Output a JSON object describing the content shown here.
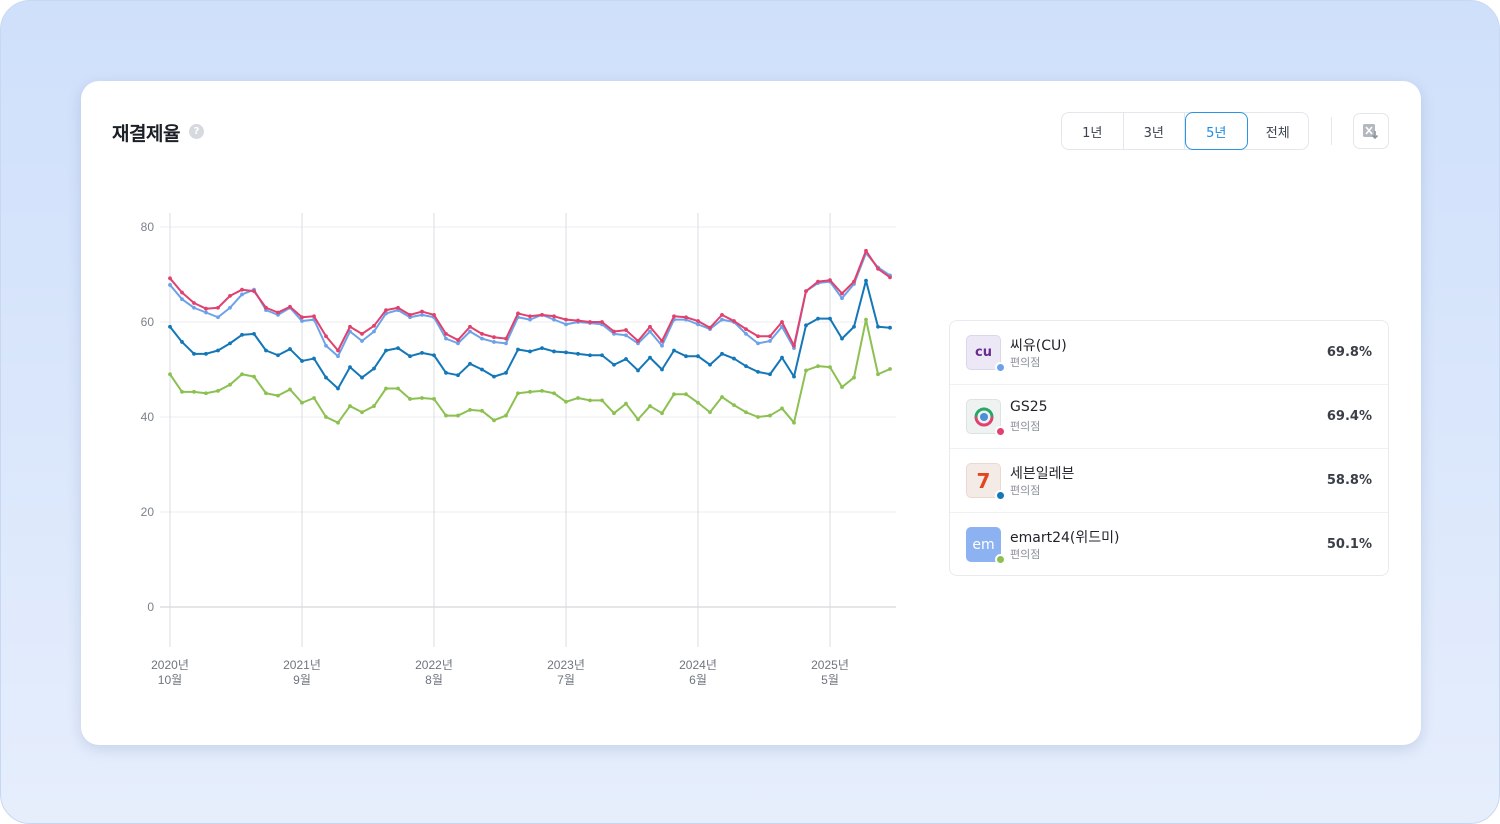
{
  "title": "재결제율",
  "help_icon": "?",
  "periods": [
    "1년",
    "3년",
    "5년",
    "전체"
  ],
  "active_period": "5년",
  "export_icon": "excel-download-icon",
  "legend": [
    {
      "name": "씨유(CU)",
      "sub": "편의점",
      "value": "69.8%",
      "color": "#6da2e8",
      "logo_text": "cu",
      "logo_bg": "#ede8f6",
      "logo_color": "#6b2c91"
    },
    {
      "name": "GS25",
      "sub": "편의점",
      "value": "69.4%",
      "color": "#e0416f",
      "logo_text": "",
      "logo_bg": "#eef2f0",
      "logo_color": "#2aa66a"
    },
    {
      "name": "세븐일레븐",
      "sub": "편의점",
      "value": "58.8%",
      "color": "#1477b8",
      "logo_text": "7",
      "logo_bg": "#f5ebe6",
      "logo_color": "#e2461f"
    },
    {
      "name": "emart24(위드미)",
      "sub": "편의점",
      "value": "50.1%",
      "color": "#8cc152",
      "logo_text": "em",
      "logo_bg": "#8db2f2",
      "logo_color": "#ffffff"
    }
  ],
  "chart_data": {
    "type": "line",
    "title": "",
    "xlabel": "",
    "ylabel": "",
    "ylim": [
      0,
      80
    ],
    "yticks": [
      "0",
      "20",
      "40",
      "60",
      "80"
    ],
    "xticks": [
      {
        "line1": "2020년",
        "line2": "10월",
        "index": 0
      },
      {
        "line1": "2021년",
        "line2": "9월",
        "index": 11
      },
      {
        "line1": "2022년",
        "line2": "8월",
        "index": 22
      },
      {
        "line1": "2023년",
        "line2": "7월",
        "index": 33
      },
      {
        "line1": "2024년",
        "line2": "6월",
        "index": 44
      },
      {
        "line1": "2025년",
        "line2": "5월",
        "index": 55
      }
    ],
    "grid": true,
    "series": [
      {
        "name": "씨유(CU)",
        "color": "#6da2e8",
        "values": [
          67.8,
          64.8,
          63.0,
          62.0,
          61.0,
          63.0,
          65.8,
          66.8,
          62.5,
          61.5,
          63.0,
          60.2,
          60.5,
          55.0,
          52.8,
          58.0,
          56.0,
          58.0,
          61.8,
          62.5,
          61.0,
          61.5,
          61.0,
          56.5,
          55.5,
          58.0,
          56.5,
          55.8,
          55.5,
          61.0,
          60.5,
          61.5,
          60.5,
          59.5,
          60.0,
          59.8,
          59.5,
          57.5,
          57.2,
          55.5,
          58.0,
          55.0,
          60.5,
          60.5,
          59.5,
          58.5,
          60.5,
          60.0,
          57.5,
          55.5,
          56.0,
          59.0,
          54.5,
          66.5,
          68.2,
          68.5,
          65.0,
          68.0,
          74.5,
          71.5,
          69.8
        ]
      },
      {
        "name": "GS25",
        "color": "#e0416f",
        "values": [
          69.2,
          66.2,
          64.0,
          62.8,
          63.0,
          65.5,
          66.8,
          66.5,
          63.0,
          62.0,
          63.2,
          61.0,
          61.2,
          57.0,
          54.0,
          59.0,
          57.5,
          59.2,
          62.5,
          63.0,
          61.5,
          62.2,
          61.5,
          57.5,
          56.2,
          59.0,
          57.5,
          56.8,
          56.5,
          61.8,
          61.2,
          61.5,
          61.2,
          60.5,
          60.3,
          60.0,
          60.0,
          58.0,
          58.3,
          56.0,
          59.0,
          56.0,
          61.2,
          61.0,
          60.2,
          58.8,
          61.5,
          60.2,
          58.5,
          57.0,
          57.0,
          60.0,
          55.0,
          66.5,
          68.5,
          68.8,
          66.0,
          68.5,
          75.0,
          71.2,
          69.4
        ]
      },
      {
        "name": "세븐일레븐",
        "color": "#1477b8",
        "values": [
          59.0,
          55.8,
          53.3,
          53.3,
          54.0,
          55.5,
          57.3,
          57.5,
          54.0,
          53.0,
          54.3,
          51.8,
          52.3,
          48.3,
          46.0,
          50.5,
          48.3,
          50.2,
          54.0,
          54.5,
          52.8,
          53.5,
          53.0,
          49.3,
          48.8,
          51.2,
          50.0,
          48.5,
          49.3,
          54.2,
          53.8,
          54.5,
          53.8,
          53.6,
          53.3,
          53.0,
          53.0,
          51.0,
          52.2,
          49.8,
          52.5,
          50.0,
          54.0,
          52.8,
          52.8,
          51.0,
          53.3,
          52.3,
          50.7,
          49.5,
          49.0,
          52.5,
          48.5,
          59.3,
          60.7,
          60.7,
          56.5,
          59.0,
          68.7,
          59.0,
          58.8
        ]
      },
      {
        "name": "emart24(위드미)",
        "color": "#8cc152",
        "values": [
          49.0,
          45.3,
          45.3,
          45.0,
          45.5,
          46.8,
          49.0,
          48.5,
          45.0,
          44.5,
          45.8,
          43.0,
          44.0,
          40.0,
          38.8,
          42.3,
          41.0,
          42.3,
          46.0,
          46.0,
          43.8,
          44.0,
          43.8,
          40.3,
          40.3,
          41.5,
          41.3,
          39.3,
          40.3,
          45.0,
          45.3,
          45.5,
          45.0,
          43.2,
          44.0,
          43.5,
          43.5,
          40.8,
          42.8,
          39.5,
          42.3,
          40.8,
          44.8,
          44.8,
          43.0,
          41.0,
          44.2,
          42.5,
          41.0,
          40.0,
          40.3,
          41.8,
          38.8,
          49.8,
          50.7,
          50.5,
          46.3,
          48.3,
          60.5,
          49.0,
          50.1
        ]
      }
    ]
  }
}
